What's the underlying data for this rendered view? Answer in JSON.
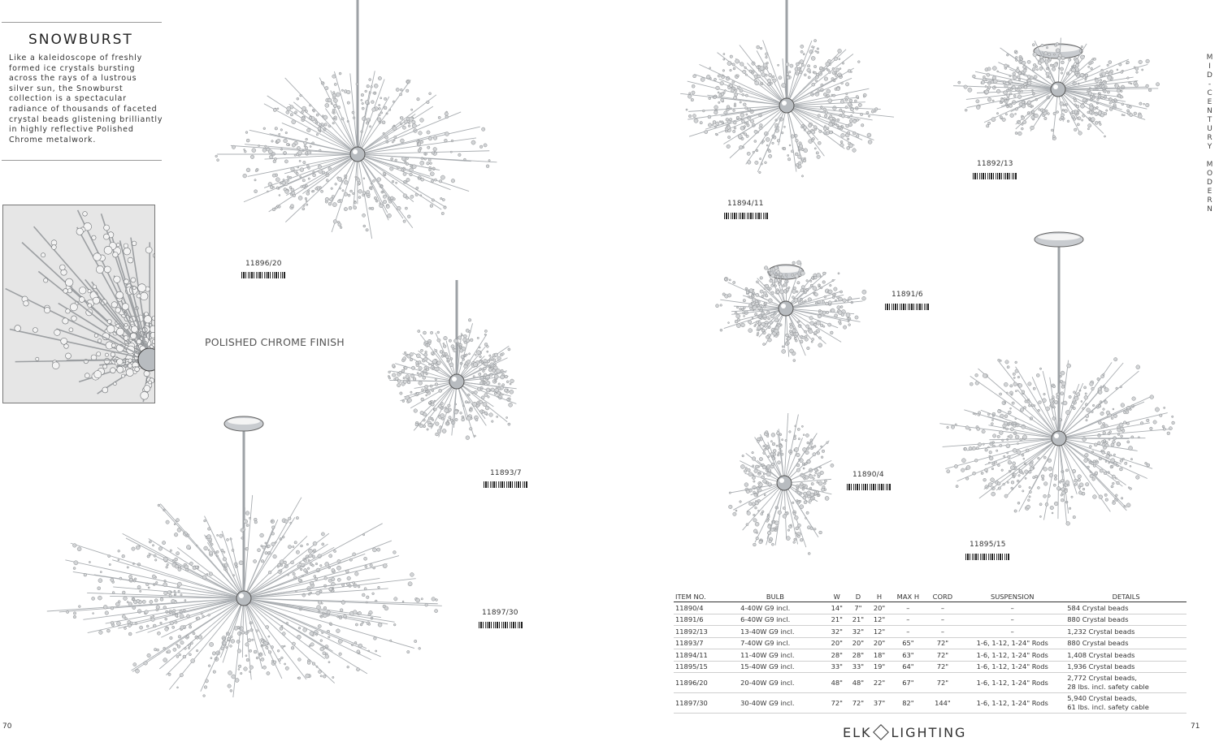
{
  "collection": {
    "title": "SNOWBURST",
    "description": "Like a kaleidoscope of freshly formed ice crystals bursting across the rays of a lustrous silver sun, the Snowburst collection is a spectacular radiance of thousands of faceted crystal beads glistening brilliantly in highly reflective Polished Chrome metalwork.",
    "finish": "POLISHED CHROME FINISH"
  },
  "skus": {
    "s11896": "11896/20",
    "s11893": "11893/7",
    "s11897": "11897/30",
    "s11894": "11894/11",
    "s11892": "11892/13",
    "s11891": "11891/6",
    "s11890": "11890/4",
    "s11895": "11895/15"
  },
  "sidebar": "MID-CENTURY MODERN",
  "pages": {
    "left": "70",
    "right": "71"
  },
  "brand": {
    "left": "ELK",
    "right": "LIGHTING"
  },
  "spec_table": {
    "headers": [
      "ITEM NO.",
      "BULB",
      "W",
      "D",
      "H",
      "MAX H",
      "CORD",
      "SUSPENSION",
      "DETAILS"
    ],
    "rows": [
      [
        "11890/4",
        "4-40W G9 incl.",
        "14\"",
        "7\"",
        "20\"",
        "–",
        "–",
        "–",
        "584 Crystal beads"
      ],
      [
        "11891/6",
        "6-40W G9 incl.",
        "21\"",
        "21\"",
        "12\"",
        "–",
        "–",
        "–",
        "880 Crystal beads"
      ],
      [
        "11892/13",
        "13-40W G9 incl.",
        "32\"",
        "32\"",
        "12\"",
        "–",
        "–",
        "–",
        "1,232 Crystal beads"
      ],
      [
        "11893/7",
        "7-40W G9 incl.",
        "20\"",
        "20\"",
        "20\"",
        "65\"",
        "72\"",
        "1-6, 1-12, 1-24\" Rods",
        "880 Crystal beads"
      ],
      [
        "11894/11",
        "11-40W G9 incl.",
        "28\"",
        "28\"",
        "18\"",
        "63\"",
        "72\"",
        "1-6, 1-12, 1-24\" Rods",
        "1,408 Crystal beads"
      ],
      [
        "11895/15",
        "15-40W G9 incl.",
        "33\"",
        "33\"",
        "19\"",
        "64\"",
        "72\"",
        "1-6, 1-12, 1-24\" Rods",
        "1,936 Crystal beads"
      ],
      [
        "11896/20",
        "20-40W G9 incl.",
        "48\"",
        "48\"",
        "22\"",
        "67\"",
        "72\"",
        "1-6, 1-12, 1-24\" Rods",
        "2,772 Crystal beads,\n28 lbs. incl. safety cable"
      ],
      [
        "11897/30",
        "30-40W G9 incl.",
        "72\"",
        "72\"",
        "37\"",
        "82\"",
        "144\"",
        "1-6, 1-12, 1-24\" Rods",
        "5,940 Crystal beads,\n61 lbs. incl. safety cable"
      ]
    ]
  },
  "colors": {
    "chrome": "#b8bcc0",
    "crystal": "#d2d4d6",
    "text": "#2a2a2a"
  }
}
